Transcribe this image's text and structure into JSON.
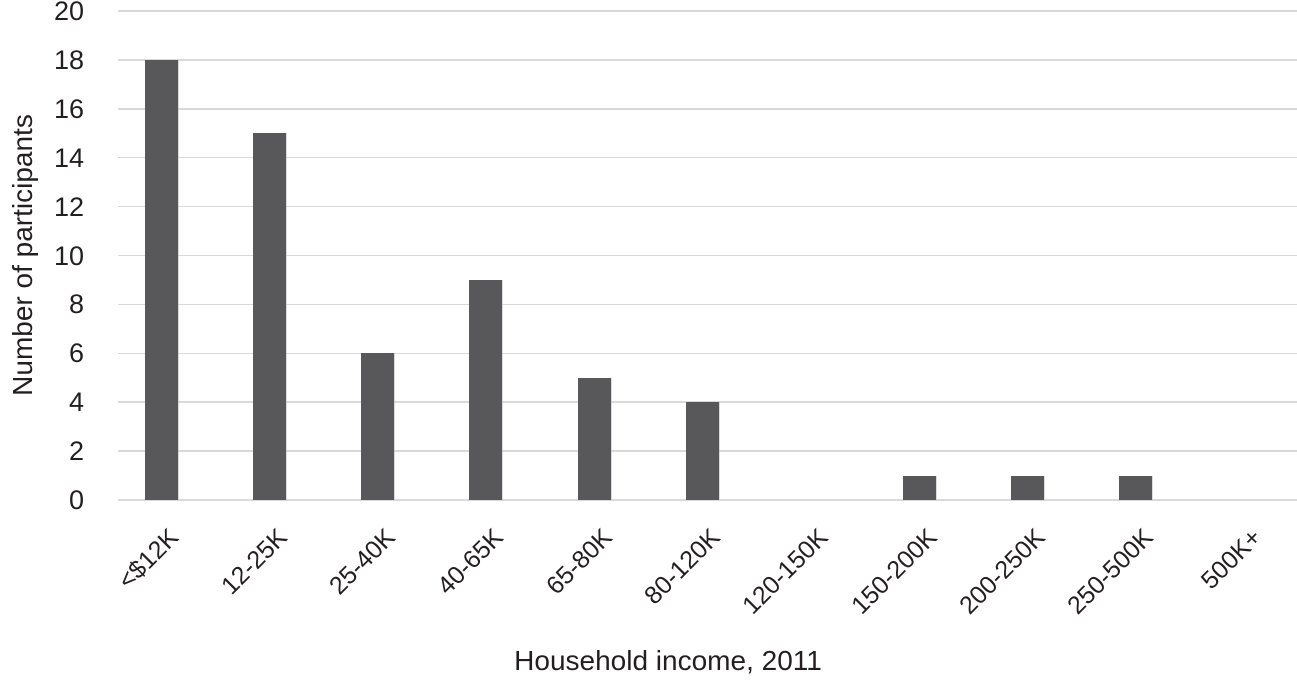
{
  "chart_data": {
    "type": "bar",
    "categories": [
      "<$12K",
      "12-25K",
      "25-40K",
      "40-65K",
      "65-80K",
      "80-120K",
      "120-150K",
      "150-200K",
      "200-250K",
      "250-500K",
      "500K+"
    ],
    "values": [
      18,
      15,
      6,
      9,
      5,
      4,
      0,
      1,
      1,
      1,
      0
    ],
    "title": "",
    "xlabel": "Household income, 2011",
    "ylabel": "Number of participants",
    "ylim": [
      0,
      20
    ],
    "yticks": [
      0,
      2,
      4,
      6,
      8,
      10,
      12,
      14,
      16,
      18,
      20
    ],
    "grid": "horizontal",
    "legend": "none",
    "bar_color": "#58585a",
    "gridline_color": "#d9d9d9",
    "text_color": "#231f20"
  }
}
